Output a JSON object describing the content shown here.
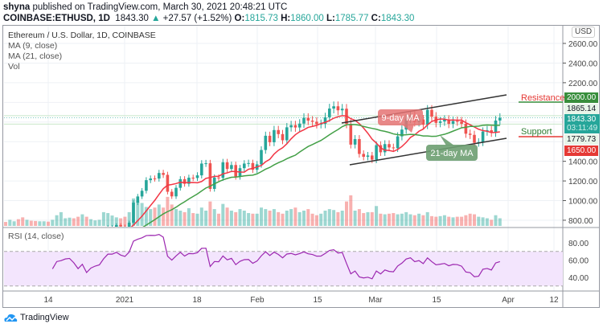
{
  "header": {
    "author": "shyna",
    "published": "published on TradingView.com, March 30, 2021 20:48:21 UTC",
    "symbol": "COINBASE:ETHUSD, 1D",
    "last": "1843.30",
    "change": "+27.57 (+1.52%)",
    "change_icon": "triangle-up-icon",
    "o_label": "O:",
    "o": "1815.73",
    "h_label": "H:",
    "h": "1860.00",
    "l_label": "L:",
    "l": "1785.77",
    "c_label": "C:",
    "c": "1843.30"
  },
  "legend": {
    "title": "Ethereum / U.S. Dollar, 1D, COINBASE",
    "ma9": "MA (9, close)",
    "ma21": "MA (21, close)",
    "vol": "Vol",
    "rsi": "RSI (14, close)"
  },
  "axis": {
    "currency": "USD",
    "price_ticks": [
      "2600.00",
      "2400.00",
      "2200.00",
      "1400.00",
      "1200.00",
      "1000.00",
      "800.00"
    ],
    "rsi_ticks": [
      "80.00",
      "60.00",
      "40.00"
    ],
    "time_ticks": [
      "14",
      "2021",
      "18",
      "Feb",
      "15",
      "Mar",
      "15",
      "Apr",
      "12"
    ]
  },
  "price_labels": {
    "resistance": "2000.00",
    "p1865": "1865.14",
    "current": "1843.30",
    "countdown": "03:11:49",
    "p1779": "1779.73",
    "support": "1650.00"
  },
  "annotations": {
    "resistance": "Resistance",
    "support": "Support",
    "ma9": "9-day MA",
    "ma21": "21-day MA"
  },
  "colors": {
    "up": "#26a69a",
    "down": "#ef5350",
    "ma9": "#f23645",
    "ma21": "#43a047",
    "rsi": "#9c27b0",
    "rsi_band": "#f3e5fd"
  },
  "footer": {
    "brand": "TradingView"
  },
  "chart_data": {
    "type": "candlestick",
    "start_date": "2020-12-01",
    "end_date": "2021-03-30",
    "ylim": [
      750,
      2700
    ],
    "rsi_band": [
      30,
      70
    ],
    "close": [
      590,
      598,
      616,
      569,
      596,
      601,
      592,
      555,
      573,
      560,
      545,
      568,
      590,
      586,
      589,
      636,
      643,
      655,
      659,
      639,
      608,
      635,
      583,
      612,
      626,
      635,
      684,
      731,
      731,
      751,
      737,
      730,
      775,
      979,
      1042,
      1100,
      1208,
      1225,
      1224,
      1281,
      1262,
      1090,
      1043,
      1130,
      1218,
      1171,
      1233,
      1230,
      1257,
      1377,
      1380,
      1119,
      1235,
      1231,
      1390,
      1322,
      1362,
      1244,
      1330,
      1377,
      1382,
      1314,
      1369,
      1515,
      1660,
      1594,
      1718,
      1677,
      1614,
      1746,
      1768,
      1744,
      1784,
      1843,
      1814,
      1803,
      1779,
      1781,
      1848,
      1937,
      1960,
      1919,
      1935,
      1781,
      1570,
      1626,
      1475,
      1446,
      1459,
      1417,
      1564,
      1492,
      1575,
      1541,
      1533,
      1654,
      1723,
      1834,
      1868,
      1799,
      1826,
      1772,
      1924,
      1854,
      1791,
      1806,
      1823,
      1782,
      1810,
      1806,
      1782,
      1681,
      1669,
      1588,
      1595,
      1703,
      1716,
      1691,
      1815,
      1843
    ],
    "volume": [
      0.22,
      0.15,
      0.15,
      0.13,
      0.2,
      0.15,
      0.22,
      0.28,
      0.2,
      0.17,
      0.16,
      0.15,
      0.15,
      0.14,
      0.2,
      0.35,
      0.45,
      0.25,
      0.27,
      0.25,
      0.3,
      0.38,
      0.3,
      0.22,
      0.18,
      0.2,
      0.45,
      0.42,
      0.34,
      0.28,
      0.25,
      0.3,
      0.45,
      0.9,
      0.8,
      0.75,
      0.62,
      0.55,
      0.6,
      0.7,
      0.6,
      0.95,
      0.7,
      0.55,
      0.5,
      0.45,
      0.58,
      0.42,
      0.4,
      0.6,
      0.5,
      0.8,
      0.55,
      0.4,
      0.72,
      0.6,
      0.5,
      0.45,
      0.55,
      0.5,
      0.42,
      0.4,
      0.4,
      0.6,
      0.55,
      0.5,
      0.55,
      0.45,
      0.4,
      0.5,
      0.55,
      0.6,
      0.45,
      0.5,
      0.55,
      0.4,
      0.35,
      0.4,
      0.5,
      0.55,
      0.52,
      0.45,
      0.5,
      0.8,
      1.0,
      0.5,
      0.55,
      0.42,
      0.45,
      0.45,
      0.65,
      0.4,
      0.38,
      0.4,
      0.42,
      0.38,
      0.4,
      0.45,
      0.38,
      0.35,
      0.4,
      0.35,
      0.45,
      0.32,
      0.3,
      0.32,
      0.35,
      0.3,
      0.28,
      0.3,
      0.3,
      0.35,
      0.4,
      0.38,
      0.3,
      0.28,
      0.25,
      0.2,
      0.35,
      0.25
    ]
  }
}
